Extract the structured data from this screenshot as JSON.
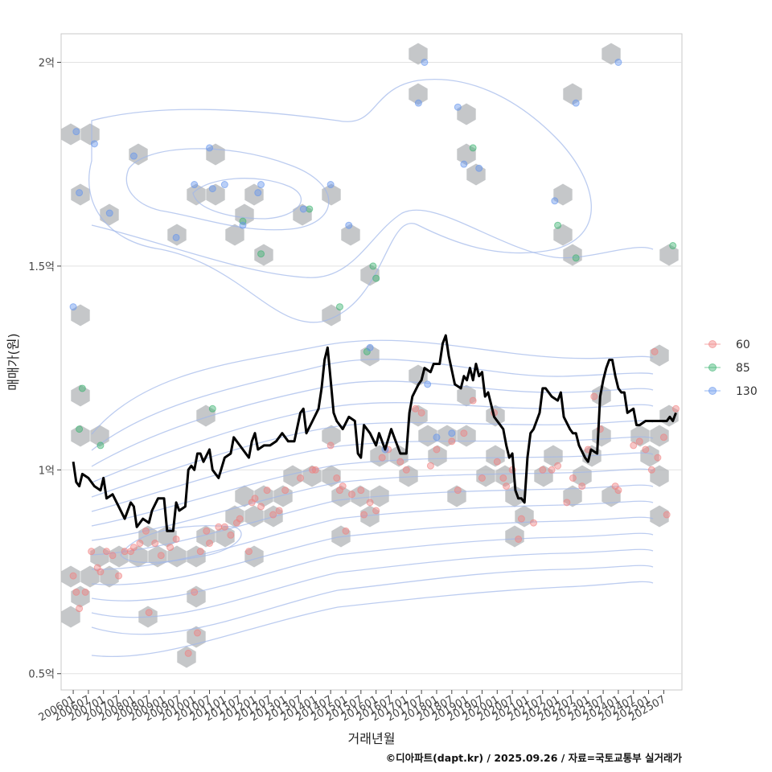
{
  "chart_data": {
    "type": "scatter",
    "title": "",
    "xlabel": "거래년월",
    "ylabel": "매매가(원)",
    "caption": "©디아파트(dapt.kr) / 2025.09.26 / 자료=국토교통부 실거래가",
    "x_ticks": [
      "200601",
      "200607",
      "200701",
      "200707",
      "200801",
      "200807",
      "200901",
      "200907",
      "201001",
      "201007",
      "201101",
      "201107",
      "201201",
      "201207",
      "201301",
      "201307",
      "201401",
      "201407",
      "201501",
      "201507",
      "201601",
      "201607",
      "201701",
      "201707",
      "201801",
      "201807",
      "201901",
      "201907",
      "202001",
      "202007",
      "202101",
      "202107",
      "202201",
      "202207",
      "202301",
      "202307",
      "202401",
      "202407",
      "202501",
      "202507"
    ],
    "y_ticks": [
      {
        "value": 0.5,
        "label": "0.5억"
      },
      {
        "value": 1.0,
        "label": "1억"
      },
      {
        "value": 1.5,
        "label": "1.5억"
      },
      {
        "value": 2.0,
        "label": "2억"
      }
    ],
    "x_range": [
      2005.6,
      2026.1
    ],
    "ylim": [
      0.46,
      2.07
    ],
    "legend": {
      "position": "right",
      "entries": [
        {
          "name": "60",
          "color": "#f08080"
        },
        {
          "name": "85",
          "color": "#3cb371"
        },
        {
          "name": "130",
          "color": "#6495ed"
        }
      ]
    },
    "series": [
      {
        "name": "60",
        "color": "#f08080",
        "points": [
          [
            2006.0,
            0.74
          ],
          [
            2006.1,
            0.7
          ],
          [
            2006.2,
            0.66
          ],
          [
            2006.4,
            0.7
          ],
          [
            2006.6,
            0.8
          ],
          [
            2006.8,
            0.76
          ],
          [
            2006.9,
            0.75
          ],
          [
            2007.1,
            0.8
          ],
          [
            2007.3,
            0.79
          ],
          [
            2007.5,
            0.74
          ],
          [
            2007.7,
            0.8
          ],
          [
            2007.9,
            0.8
          ],
          [
            2008.0,
            0.81
          ],
          [
            2008.2,
            0.82
          ],
          [
            2008.4,
            0.85
          ],
          [
            2008.5,
            0.65
          ],
          [
            2008.7,
            0.82
          ],
          [
            2008.9,
            0.79
          ],
          [
            2009.2,
            0.81
          ],
          [
            2009.4,
            0.83
          ],
          [
            2009.8,
            0.55
          ],
          [
            2010.0,
            0.7
          ],
          [
            2010.1,
            0.6
          ],
          [
            2010.2,
            0.8
          ],
          [
            2010.4,
            0.85
          ],
          [
            2010.5,
            0.82
          ],
          [
            2010.8,
            0.86
          ],
          [
            2011.0,
            0.86
          ],
          [
            2011.2,
            0.84
          ],
          [
            2011.4,
            0.87
          ],
          [
            2011.5,
            0.88
          ],
          [
            2011.8,
            0.8
          ],
          [
            2011.9,
            0.92
          ],
          [
            2012.0,
            0.93
          ],
          [
            2012.2,
            0.91
          ],
          [
            2012.4,
            0.95
          ],
          [
            2012.6,
            0.89
          ],
          [
            2012.8,
            0.9
          ],
          [
            2013.0,
            0.95
          ],
          [
            2013.5,
            0.98
          ],
          [
            2013.9,
            1.0
          ],
          [
            2014.0,
            1.0
          ],
          [
            2014.5,
            1.06
          ],
          [
            2014.7,
            0.98
          ],
          [
            2014.8,
            0.95
          ],
          [
            2014.9,
            0.96
          ],
          [
            2015.0,
            0.85
          ],
          [
            2015.2,
            0.94
          ],
          [
            2015.5,
            0.95
          ],
          [
            2015.6,
            0.89
          ],
          [
            2015.8,
            0.92
          ],
          [
            2016.0,
            0.9
          ],
          [
            2016.2,
            1.03
          ],
          [
            2016.4,
            1.05
          ],
          [
            2016.8,
            1.02
          ],
          [
            2017.0,
            1.0
          ],
          [
            2017.3,
            1.15
          ],
          [
            2017.5,
            1.14
          ],
          [
            2017.8,
            1.01
          ],
          [
            2018.0,
            1.05
          ],
          [
            2018.5,
            1.07
          ],
          [
            2018.7,
            0.95
          ],
          [
            2018.9,
            1.09
          ],
          [
            2019.2,
            1.17
          ],
          [
            2019.5,
            0.98
          ],
          [
            2019.9,
            1.14
          ],
          [
            2020.0,
            1.02
          ],
          [
            2020.2,
            0.98
          ],
          [
            2020.3,
            0.96
          ],
          [
            2020.5,
            1.0
          ],
          [
            2020.7,
            0.83
          ],
          [
            2020.8,
            0.88
          ],
          [
            2021.2,
            0.87
          ],
          [
            2021.5,
            1.0
          ],
          [
            2021.8,
            1.0
          ],
          [
            2022.0,
            1.01
          ],
          [
            2022.3,
            0.92
          ],
          [
            2022.5,
            0.98
          ],
          [
            2022.8,
            0.96
          ],
          [
            2023.0,
            1.05
          ],
          [
            2023.2,
            1.18
          ],
          [
            2023.4,
            1.1
          ],
          [
            2023.9,
            0.96
          ],
          [
            2024.0,
            0.95
          ],
          [
            2024.5,
            1.06
          ],
          [
            2024.7,
            1.07
          ],
          [
            2024.9,
            1.05
          ],
          [
            2025.1,
            1.0
          ],
          [
            2025.2,
            1.29
          ],
          [
            2025.3,
            1.03
          ],
          [
            2025.5,
            1.08
          ],
          [
            2025.6,
            0.89
          ],
          [
            2025.9,
            1.15
          ]
        ]
      },
      {
        "name": "85",
        "color": "#3cb371",
        "points": [
          [
            2006.2,
            1.1
          ],
          [
            2006.3,
            1.2
          ],
          [
            2006.9,
            1.06
          ],
          [
            2010.6,
            1.15
          ],
          [
            2011.6,
            1.61
          ],
          [
            2012.2,
            1.53
          ],
          [
            2013.8,
            1.64
          ],
          [
            2014.8,
            1.4
          ],
          [
            2015.7,
            1.29
          ],
          [
            2015.9,
            1.5
          ],
          [
            2016.0,
            1.47
          ],
          [
            2019.2,
            1.79
          ],
          [
            2022.0,
            1.6
          ],
          [
            2022.6,
            1.52
          ],
          [
            2025.8,
            1.55
          ]
        ]
      },
      {
        "name": "130",
        "color": "#6495ed",
        "points": [
          [
            2006.1,
            1.83
          ],
          [
            2006.2,
            1.68
          ],
          [
            2006.7,
            1.8
          ],
          [
            2007.2,
            1.63
          ],
          [
            2008.0,
            1.77
          ],
          [
            2009.4,
            1.57
          ],
          [
            2010.0,
            1.7
          ],
          [
            2010.5,
            1.79
          ],
          [
            2010.6,
            1.69
          ],
          [
            2011.0,
            1.7
          ],
          [
            2011.6,
            1.6
          ],
          [
            2012.2,
            1.7
          ],
          [
            2012.1,
            1.68
          ],
          [
            2013.6,
            1.64
          ],
          [
            2014.5,
            1.7
          ],
          [
            2015.1,
            1.6
          ],
          [
            2015.8,
            1.3
          ],
          [
            2016.3,
            1.05
          ],
          [
            2017.4,
            1.9
          ],
          [
            2017.6,
            2.0
          ],
          [
            2018.0,
            1.08
          ],
          [
            2018.5,
            1.09
          ],
          [
            2018.7,
            1.89
          ],
          [
            2018.9,
            1.75
          ],
          [
            2019.4,
            1.74
          ],
          [
            2021.9,
            1.66
          ],
          [
            2022.6,
            1.9
          ],
          [
            2024.0,
            2.0
          ],
          [
            2006.0,
            1.4
          ],
          [
            2017.7,
            1.21
          ]
        ]
      },
      {
        "name": "median",
        "type": "line",
        "color": "#000000",
        "points": [
          [
            2006.0,
            1.02
          ],
          [
            2006.1,
            0.97
          ],
          [
            2006.2,
            0.96
          ],
          [
            2006.3,
            0.99
          ],
          [
            2006.5,
            0.98
          ],
          [
            2006.7,
            0.96
          ],
          [
            2006.9,
            0.95
          ],
          [
            2007.0,
            0.98
          ],
          [
            2007.1,
            0.93
          ],
          [
            2007.3,
            0.94
          ],
          [
            2007.5,
            0.91
          ],
          [
            2007.7,
            0.88
          ],
          [
            2007.9,
            0.92
          ],
          [
            2008.0,
            0.91
          ],
          [
            2008.1,
            0.86
          ],
          [
            2008.3,
            0.88
          ],
          [
            2008.5,
            0.87
          ],
          [
            2008.6,
            0.9
          ],
          [
            2008.8,
            0.93
          ],
          [
            2009.0,
            0.93
          ],
          [
            2009.1,
            0.85
          ],
          [
            2009.3,
            0.85
          ],
          [
            2009.4,
            0.92
          ],
          [
            2009.5,
            0.9
          ],
          [
            2009.7,
            0.91
          ],
          [
            2009.8,
            1.0
          ],
          [
            2009.9,
            1.01
          ],
          [
            2010.0,
            1.0
          ],
          [
            2010.1,
            1.04
          ],
          [
            2010.2,
            1.04
          ],
          [
            2010.3,
            1.02
          ],
          [
            2010.5,
            1.05
          ],
          [
            2010.6,
            1.0
          ],
          [
            2010.8,
            0.98
          ],
          [
            2011.0,
            1.03
          ],
          [
            2011.2,
            1.04
          ],
          [
            2011.3,
            1.08
          ],
          [
            2011.5,
            1.06
          ],
          [
            2011.7,
            1.04
          ],
          [
            2011.8,
            1.03
          ],
          [
            2011.9,
            1.07
          ],
          [
            2012.0,
            1.09
          ],
          [
            2012.1,
            1.05
          ],
          [
            2012.3,
            1.06
          ],
          [
            2012.5,
            1.06
          ],
          [
            2012.7,
            1.07
          ],
          [
            2012.9,
            1.09
          ],
          [
            2013.1,
            1.07
          ],
          [
            2013.3,
            1.07
          ],
          [
            2013.5,
            1.14
          ],
          [
            2013.6,
            1.15
          ],
          [
            2013.7,
            1.09
          ],
          [
            2013.9,
            1.12
          ],
          [
            2014.1,
            1.15
          ],
          [
            2014.2,
            1.2
          ],
          [
            2014.3,
            1.27
          ],
          [
            2014.4,
            1.3
          ],
          [
            2014.5,
            1.22
          ],
          [
            2014.6,
            1.14
          ],
          [
            2014.7,
            1.12
          ],
          [
            2014.9,
            1.1
          ],
          [
            2015.1,
            1.13
          ],
          [
            2015.3,
            1.12
          ],
          [
            2015.4,
            1.04
          ],
          [
            2015.5,
            1.03
          ],
          [
            2015.6,
            1.11
          ],
          [
            2015.8,
            1.09
          ],
          [
            2016.0,
            1.06
          ],
          [
            2016.1,
            1.09
          ],
          [
            2016.3,
            1.05
          ],
          [
            2016.5,
            1.1
          ],
          [
            2016.6,
            1.08
          ],
          [
            2016.8,
            1.04
          ],
          [
            2017.0,
            1.04
          ],
          [
            2017.1,
            1.14
          ],
          [
            2017.2,
            1.18
          ],
          [
            2017.4,
            1.21
          ],
          [
            2017.5,
            1.22
          ],
          [
            2017.6,
            1.25
          ],
          [
            2017.8,
            1.24
          ],
          [
            2017.9,
            1.26
          ],
          [
            2018.1,
            1.26
          ],
          [
            2018.2,
            1.31
          ],
          [
            2018.3,
            1.33
          ],
          [
            2018.4,
            1.28
          ],
          [
            2018.6,
            1.21
          ],
          [
            2018.8,
            1.2
          ],
          [
            2018.9,
            1.23
          ],
          [
            2019.0,
            1.22
          ],
          [
            2019.1,
            1.25
          ],
          [
            2019.2,
            1.22
          ],
          [
            2019.3,
            1.26
          ],
          [
            2019.4,
            1.23
          ],
          [
            2019.5,
            1.24
          ],
          [
            2019.6,
            1.18
          ],
          [
            2019.7,
            1.19
          ],
          [
            2019.8,
            1.16
          ],
          [
            2019.9,
            1.13
          ],
          [
            2020.0,
            1.12
          ],
          [
            2020.2,
            1.1
          ],
          [
            2020.3,
            1.06
          ],
          [
            2020.4,
            1.03
          ],
          [
            2020.5,
            1.04
          ],
          [
            2020.6,
            0.95
          ],
          [
            2020.7,
            0.93
          ],
          [
            2020.8,
            0.93
          ],
          [
            2020.9,
            0.92
          ],
          [
            2021.0,
            1.03
          ],
          [
            2021.1,
            1.09
          ],
          [
            2021.2,
            1.1
          ],
          [
            2021.4,
            1.14
          ],
          [
            2021.5,
            1.2
          ],
          [
            2021.6,
            1.2
          ],
          [
            2021.8,
            1.18
          ],
          [
            2022.0,
            1.17
          ],
          [
            2022.1,
            1.19
          ],
          [
            2022.2,
            1.13
          ],
          [
            2022.4,
            1.1
          ],
          [
            2022.5,
            1.09
          ],
          [
            2022.6,
            1.09
          ],
          [
            2022.7,
            1.06
          ],
          [
            2022.9,
            1.03
          ],
          [
            2023.0,
            1.02
          ],
          [
            2023.1,
            1.05
          ],
          [
            2023.3,
            1.04
          ],
          [
            2023.4,
            1.18
          ],
          [
            2023.5,
            1.22
          ],
          [
            2023.6,
            1.25
          ],
          [
            2023.7,
            1.27
          ],
          [
            2023.8,
            1.27
          ],
          [
            2023.9,
            1.23
          ],
          [
            2024.0,
            1.2
          ],
          [
            2024.1,
            1.19
          ],
          [
            2024.2,
            1.19
          ],
          [
            2024.3,
            1.14
          ],
          [
            2024.5,
            1.15
          ],
          [
            2024.6,
            1.11
          ],
          [
            2024.7,
            1.11
          ],
          [
            2024.9,
            1.12
          ],
          [
            2025.1,
            1.12
          ],
          [
            2025.3,
            1.12
          ],
          [
            2025.5,
            1.12
          ],
          [
            2025.6,
            1.12
          ],
          [
            2025.7,
            1.13
          ],
          [
            2025.8,
            1.12
          ],
          [
            2025.9,
            1.14
          ]
        ]
      }
    ],
    "annotations": [
      {
        "type": "hexbin",
        "description": "grey hexagon density bins behind points"
      },
      {
        "type": "contour",
        "description": "light blue 2D density contours"
      }
    ]
  }
}
